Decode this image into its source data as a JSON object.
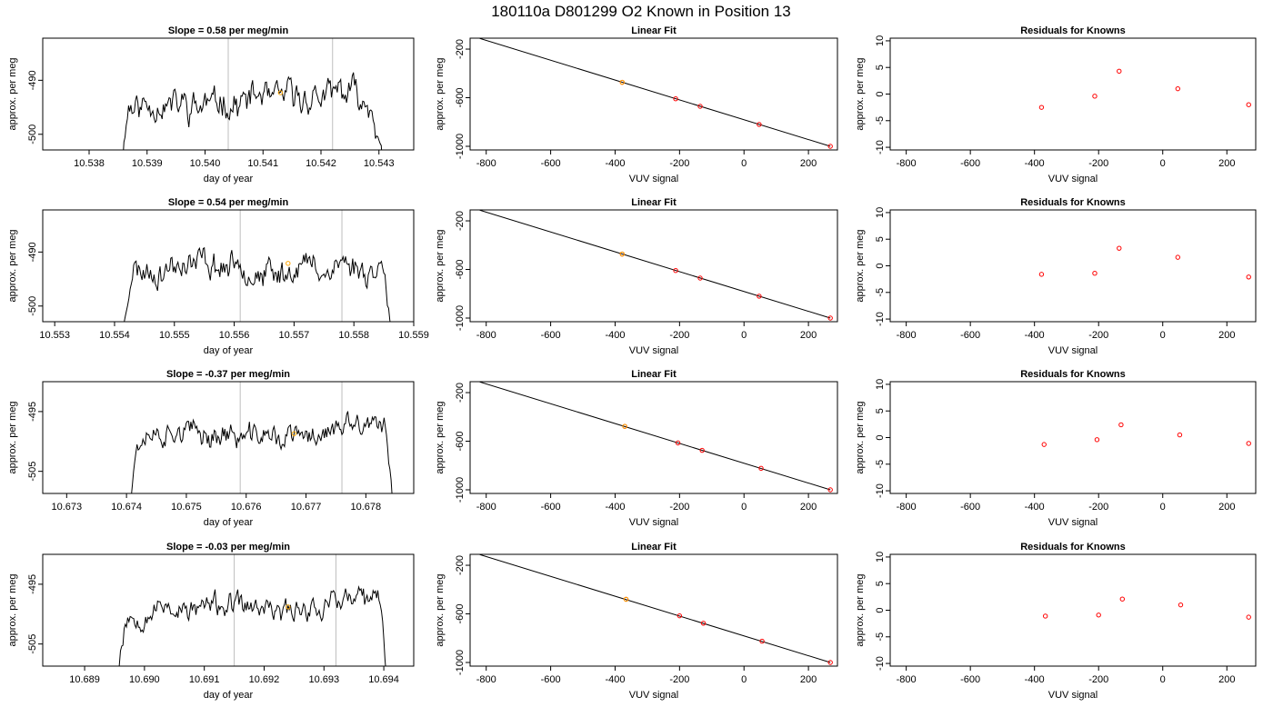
{
  "title": "180110a     D801299   O2 Known in Position  13",
  "colors": {
    "trace": "#000000",
    "vline": "#bebebe",
    "marker_orange": "#ffa500",
    "point_red": "#ff0000",
    "fit_line": "#000000"
  },
  "chart_data": [
    {
      "row": 1,
      "time_panel": {
        "type": "line",
        "title": "Slope =  0.58  per meg/min",
        "xlabel": "day of year",
        "ylabel": "approx. per meg",
        "xlim": [
          10.5372,
          10.5436
        ],
        "ylim": [
          -502.9,
          -482.2
        ],
        "xticks": [
          "10.538",
          "10.539",
          "10.540",
          "10.541",
          "10.542",
          "10.543"
        ],
        "yticks": [
          "-490",
          "-500"
        ],
        "vlines": [
          10.5404,
          10.5422
        ],
        "marker": [
          10.5413,
          -492.3
        ],
        "trace_x_range": [
          10.5385,
          10.5431
        ],
        "trace_base": -493.5,
        "trace_amp": 3.6,
        "trace_seed": 11
      },
      "fit_panel": {
        "type": "scatter",
        "title": "Linear Fit",
        "xlabel": "VUV signal",
        "ylabel": "approx. per meg",
        "xlim": [
          -850,
          290
        ],
        "ylim": [
          -1030,
          -110
        ],
        "xticks": [
          "-800",
          "-600",
          "-400",
          "-200",
          "0",
          "200"
        ],
        "yticks": [
          "-200",
          "-600",
          "-1000"
        ],
        "line": [
          [
            -820,
            -112
          ],
          [
            268,
            -1000
          ]
        ],
        "points": [
          [
            -378,
            -473
          ],
          [
            -212,
            -609
          ],
          [
            -136,
            -671
          ],
          [
            47,
            -820
          ],
          [
            268,
            -1000
          ]
        ],
        "orange_point": [
          -378,
          -473
        ]
      },
      "resid_panel": {
        "type": "scatter",
        "title": "Residuals for Knowns",
        "xlabel": "VUV signal",
        "ylabel": "approx. per meg",
        "xlim": [
          -850,
          290
        ],
        "ylim": [
          -10.5,
          10.5
        ],
        "xticks": [
          "-800",
          "-600",
          "-400",
          "-200",
          "0",
          "200"
        ],
        "yticks": [
          "10",
          "5",
          "0",
          "-5",
          "-10"
        ],
        "points": [
          [
            -378,
            -2.5
          ],
          [
            -212,
            -0.4
          ],
          [
            -136,
            4.3
          ],
          [
            47,
            1.0
          ],
          [
            268,
            -2.0
          ]
        ]
      }
    },
    {
      "row": 2,
      "time_panel": {
        "type": "line",
        "title": "Slope =  0.54  per meg/min",
        "xlabel": "day of year",
        "ylabel": "approx. per meg",
        "xlim": [
          10.5528,
          10.559
        ],
        "ylim": [
          -502.9,
          -482.2
        ],
        "xticks": [
          "10.553",
          "10.554",
          "10.555",
          "10.556",
          "10.557",
          "10.558",
          "10.559"
        ],
        "yticks": [
          "-490",
          "-500"
        ],
        "vlines": [
          10.5561,
          10.5578
        ],
        "marker": [
          10.5569,
          -492.1
        ],
        "trace_x_range": [
          10.5541,
          10.5587
        ],
        "trace_base": -493.0,
        "trace_amp": 3.3,
        "trace_seed": 23
      },
      "fit_panel": {
        "type": "scatter",
        "title": "Linear Fit",
        "xlabel": "VUV signal",
        "ylabel": "approx. per meg",
        "xlim": [
          -850,
          290
        ],
        "ylim": [
          -1030,
          -110
        ],
        "xticks": [
          "-800",
          "-600",
          "-400",
          "-200",
          "0",
          "200"
        ],
        "yticks": [
          "-200",
          "-600",
          "-1000"
        ],
        "line": [
          [
            -820,
            -112
          ],
          [
            268,
            -1000
          ]
        ],
        "points": [
          [
            -378,
            -473
          ],
          [
            -212,
            -609
          ],
          [
            -136,
            -671
          ],
          [
            47,
            -820
          ],
          [
            268,
            -1000
          ]
        ],
        "orange_point": [
          -378,
          -473
        ]
      },
      "resid_panel": {
        "type": "scatter",
        "title": "Residuals for Knowns",
        "xlabel": "VUV signal",
        "ylabel": "approx. per meg",
        "xlim": [
          -850,
          290
        ],
        "ylim": [
          -10.5,
          10.5
        ],
        "xticks": [
          "-800",
          "-600",
          "-400",
          "-200",
          "0",
          "200"
        ],
        "yticks": [
          "10",
          "5",
          "0",
          "-5",
          "-10"
        ],
        "points": [
          [
            -378,
            -1.6
          ],
          [
            -212,
            -1.4
          ],
          [
            -136,
            3.3
          ],
          [
            47,
            1.6
          ],
          [
            268,
            -2.1
          ]
        ]
      }
    },
    {
      "row": 3,
      "time_panel": {
        "type": "line",
        "title": "Slope =  -0.37  per meg/min",
        "xlabel": "day of year",
        "ylabel": "approx. per meg",
        "xlim": [
          10.6726,
          10.6788
        ],
        "ylim": [
          -508.7,
          -490.0
        ],
        "xticks": [
          "10.673",
          "10.674",
          "10.675",
          "10.676",
          "10.677",
          "10.678"
        ],
        "yticks": [
          "-495",
          "-505"
        ],
        "vlines": [
          10.6759,
          10.6776
        ],
        "marker": [
          10.6768,
          -498.7
        ],
        "trace_x_range": [
          10.674,
          10.6785
        ],
        "trace_base": -499.0,
        "trace_amp": 2.6,
        "trace_seed": 37
      },
      "fit_panel": {
        "type": "scatter",
        "title": "Linear Fit",
        "xlabel": "VUV signal",
        "ylabel": "approx. per meg",
        "xlim": [
          -850,
          290
        ],
        "ylim": [
          -1030,
          -110
        ],
        "xticks": [
          "-800",
          "-600",
          "-400",
          "-200",
          "0",
          "200"
        ],
        "yticks": [
          "-200",
          "-600",
          "-1000"
        ],
        "line": [
          [
            -820,
            -112
          ],
          [
            268,
            -1000
          ]
        ],
        "points": [
          [
            -370,
            -478
          ],
          [
            -205,
            -614
          ],
          [
            -130,
            -675
          ],
          [
            53,
            -823
          ],
          [
            268,
            -1000
          ]
        ],
        "orange_point": [
          -370,
          -478
        ]
      },
      "resid_panel": {
        "type": "scatter",
        "title": "Residuals for Knowns",
        "xlabel": "VUV signal",
        "ylabel": "approx. per meg",
        "xlim": [
          -850,
          290
        ],
        "ylim": [
          -10.5,
          10.5
        ],
        "xticks": [
          "-800",
          "-600",
          "-400",
          "-200",
          "0",
          "200"
        ],
        "yticks": [
          "10",
          "5",
          "0",
          "-5",
          "-10"
        ],
        "points": [
          [
            -370,
            -1.3
          ],
          [
            -205,
            -0.4
          ],
          [
            -130,
            2.4
          ],
          [
            53,
            0.5
          ],
          [
            268,
            -1.1
          ]
        ]
      }
    },
    {
      "row": 4,
      "time_panel": {
        "type": "line",
        "title": "Slope =  -0.03  per meg/min",
        "xlabel": "day of year",
        "ylabel": "approx. per meg",
        "xlim": [
          10.6883,
          10.6945
        ],
        "ylim": [
          -508.7,
          -490.0
        ],
        "xticks": [
          "10.689",
          "10.690",
          "10.691",
          "10.692",
          "10.693",
          "10.694"
        ],
        "yticks": [
          "-495",
          "-505"
        ],
        "vlines": [
          10.6915,
          10.6932
        ],
        "marker": [
          10.6924,
          -498.8
        ],
        "trace_x_range": [
          10.6895,
          10.6941
        ],
        "trace_base": -498.8,
        "trace_amp": 2.5,
        "trace_seed": 53
      },
      "fit_panel": {
        "type": "scatter",
        "title": "Linear Fit",
        "xlabel": "VUV signal",
        "ylabel": "approx. per meg",
        "xlim": [
          -850,
          290
        ],
        "ylim": [
          -1030,
          -110
        ],
        "xticks": [
          "-800",
          "-600",
          "-400",
          "-200",
          "0",
          "200"
        ],
        "yticks": [
          "-200",
          "-600",
          "-1000"
        ],
        "line": [
          [
            -820,
            -112
          ],
          [
            268,
            -1000
          ]
        ],
        "points": [
          [
            -366,
            -480
          ],
          [
            -200,
            -616
          ],
          [
            -126,
            -677
          ],
          [
            56,
            -825
          ],
          [
            268,
            -1000
          ]
        ],
        "orange_point": [
          -366,
          -480
        ]
      },
      "resid_panel": {
        "type": "scatter",
        "title": "Residuals for Knowns",
        "xlabel": "VUV signal",
        "ylabel": "approx. per meg",
        "xlim": [
          -850,
          290
        ],
        "ylim": [
          -10.5,
          10.5
        ],
        "xticks": [
          "-800",
          "-600",
          "-400",
          "-200",
          "0",
          "200"
        ],
        "yticks": [
          "10",
          "5",
          "0",
          "-5",
          "-10"
        ],
        "points": [
          [
            -366,
            -1.1
          ],
          [
            -200,
            -0.9
          ],
          [
            -126,
            2.1
          ],
          [
            56,
            1.0
          ],
          [
            268,
            -1.3
          ]
        ]
      }
    }
  ]
}
